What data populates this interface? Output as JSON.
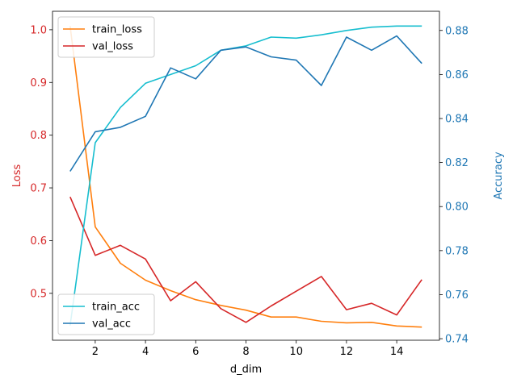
{
  "chart_data": {
    "type": "line",
    "xlabel": "d_dim",
    "left_axis": {
      "label": "Loss",
      "color": "#d62728",
      "ylim": [
        0.411,
        1.035
      ],
      "ticks": [
        "0.5",
        "0.6",
        "0.7",
        "0.8",
        "0.9",
        "1.0"
      ]
    },
    "right_axis": {
      "label": "Accuracy",
      "color": "#1f77b4",
      "ylim": [
        0.7393,
        0.8887
      ],
      "ticks": [
        "0.74",
        "0.76",
        "0.78",
        "0.80",
        "0.82",
        "0.84",
        "0.86",
        "0.88"
      ]
    },
    "xlim": [
      0.3,
      15.7
    ],
    "xticks": [
      "2",
      "4",
      "6",
      "8",
      "10",
      "12",
      "14"
    ],
    "x": [
      1,
      2,
      3,
      4,
      5,
      6,
      7,
      8,
      9,
      10,
      11,
      12,
      13,
      14,
      15
    ],
    "loss_series": [
      {
        "name": "train_loss",
        "color": "#ff7f0e",
        "values": [
          1.007,
          0.626,
          0.557,
          0.525,
          0.505,
          0.488,
          0.477,
          0.468,
          0.455,
          0.455,
          0.447,
          0.444,
          0.445,
          0.438,
          0.436
        ]
      },
      {
        "name": "val_loss",
        "color": "#d62728",
        "values": [
          0.683,
          0.572,
          0.591,
          0.565,
          0.486,
          0.522,
          0.471,
          0.445,
          0.476,
          0.504,
          0.532,
          0.469,
          0.481,
          0.459,
          0.526
        ]
      }
    ],
    "acc_series": [
      {
        "name": "train_acc",
        "color": "#17becf",
        "values": [
          0.746,
          0.829,
          0.845,
          0.856,
          0.86,
          0.864,
          0.871,
          0.873,
          0.877,
          0.8765,
          0.878,
          0.88,
          0.8815,
          0.882,
          0.882
        ]
      },
      {
        "name": "val_acc",
        "color": "#1f77b4",
        "values": [
          0.816,
          0.834,
          0.836,
          0.841,
          0.863,
          0.858,
          0.871,
          0.8725,
          0.868,
          0.8665,
          0.855,
          0.877,
          0.871,
          0.8775,
          0.865
        ]
      }
    ],
    "legends": {
      "loss": "top-left",
      "acc": "bottom-left"
    }
  }
}
